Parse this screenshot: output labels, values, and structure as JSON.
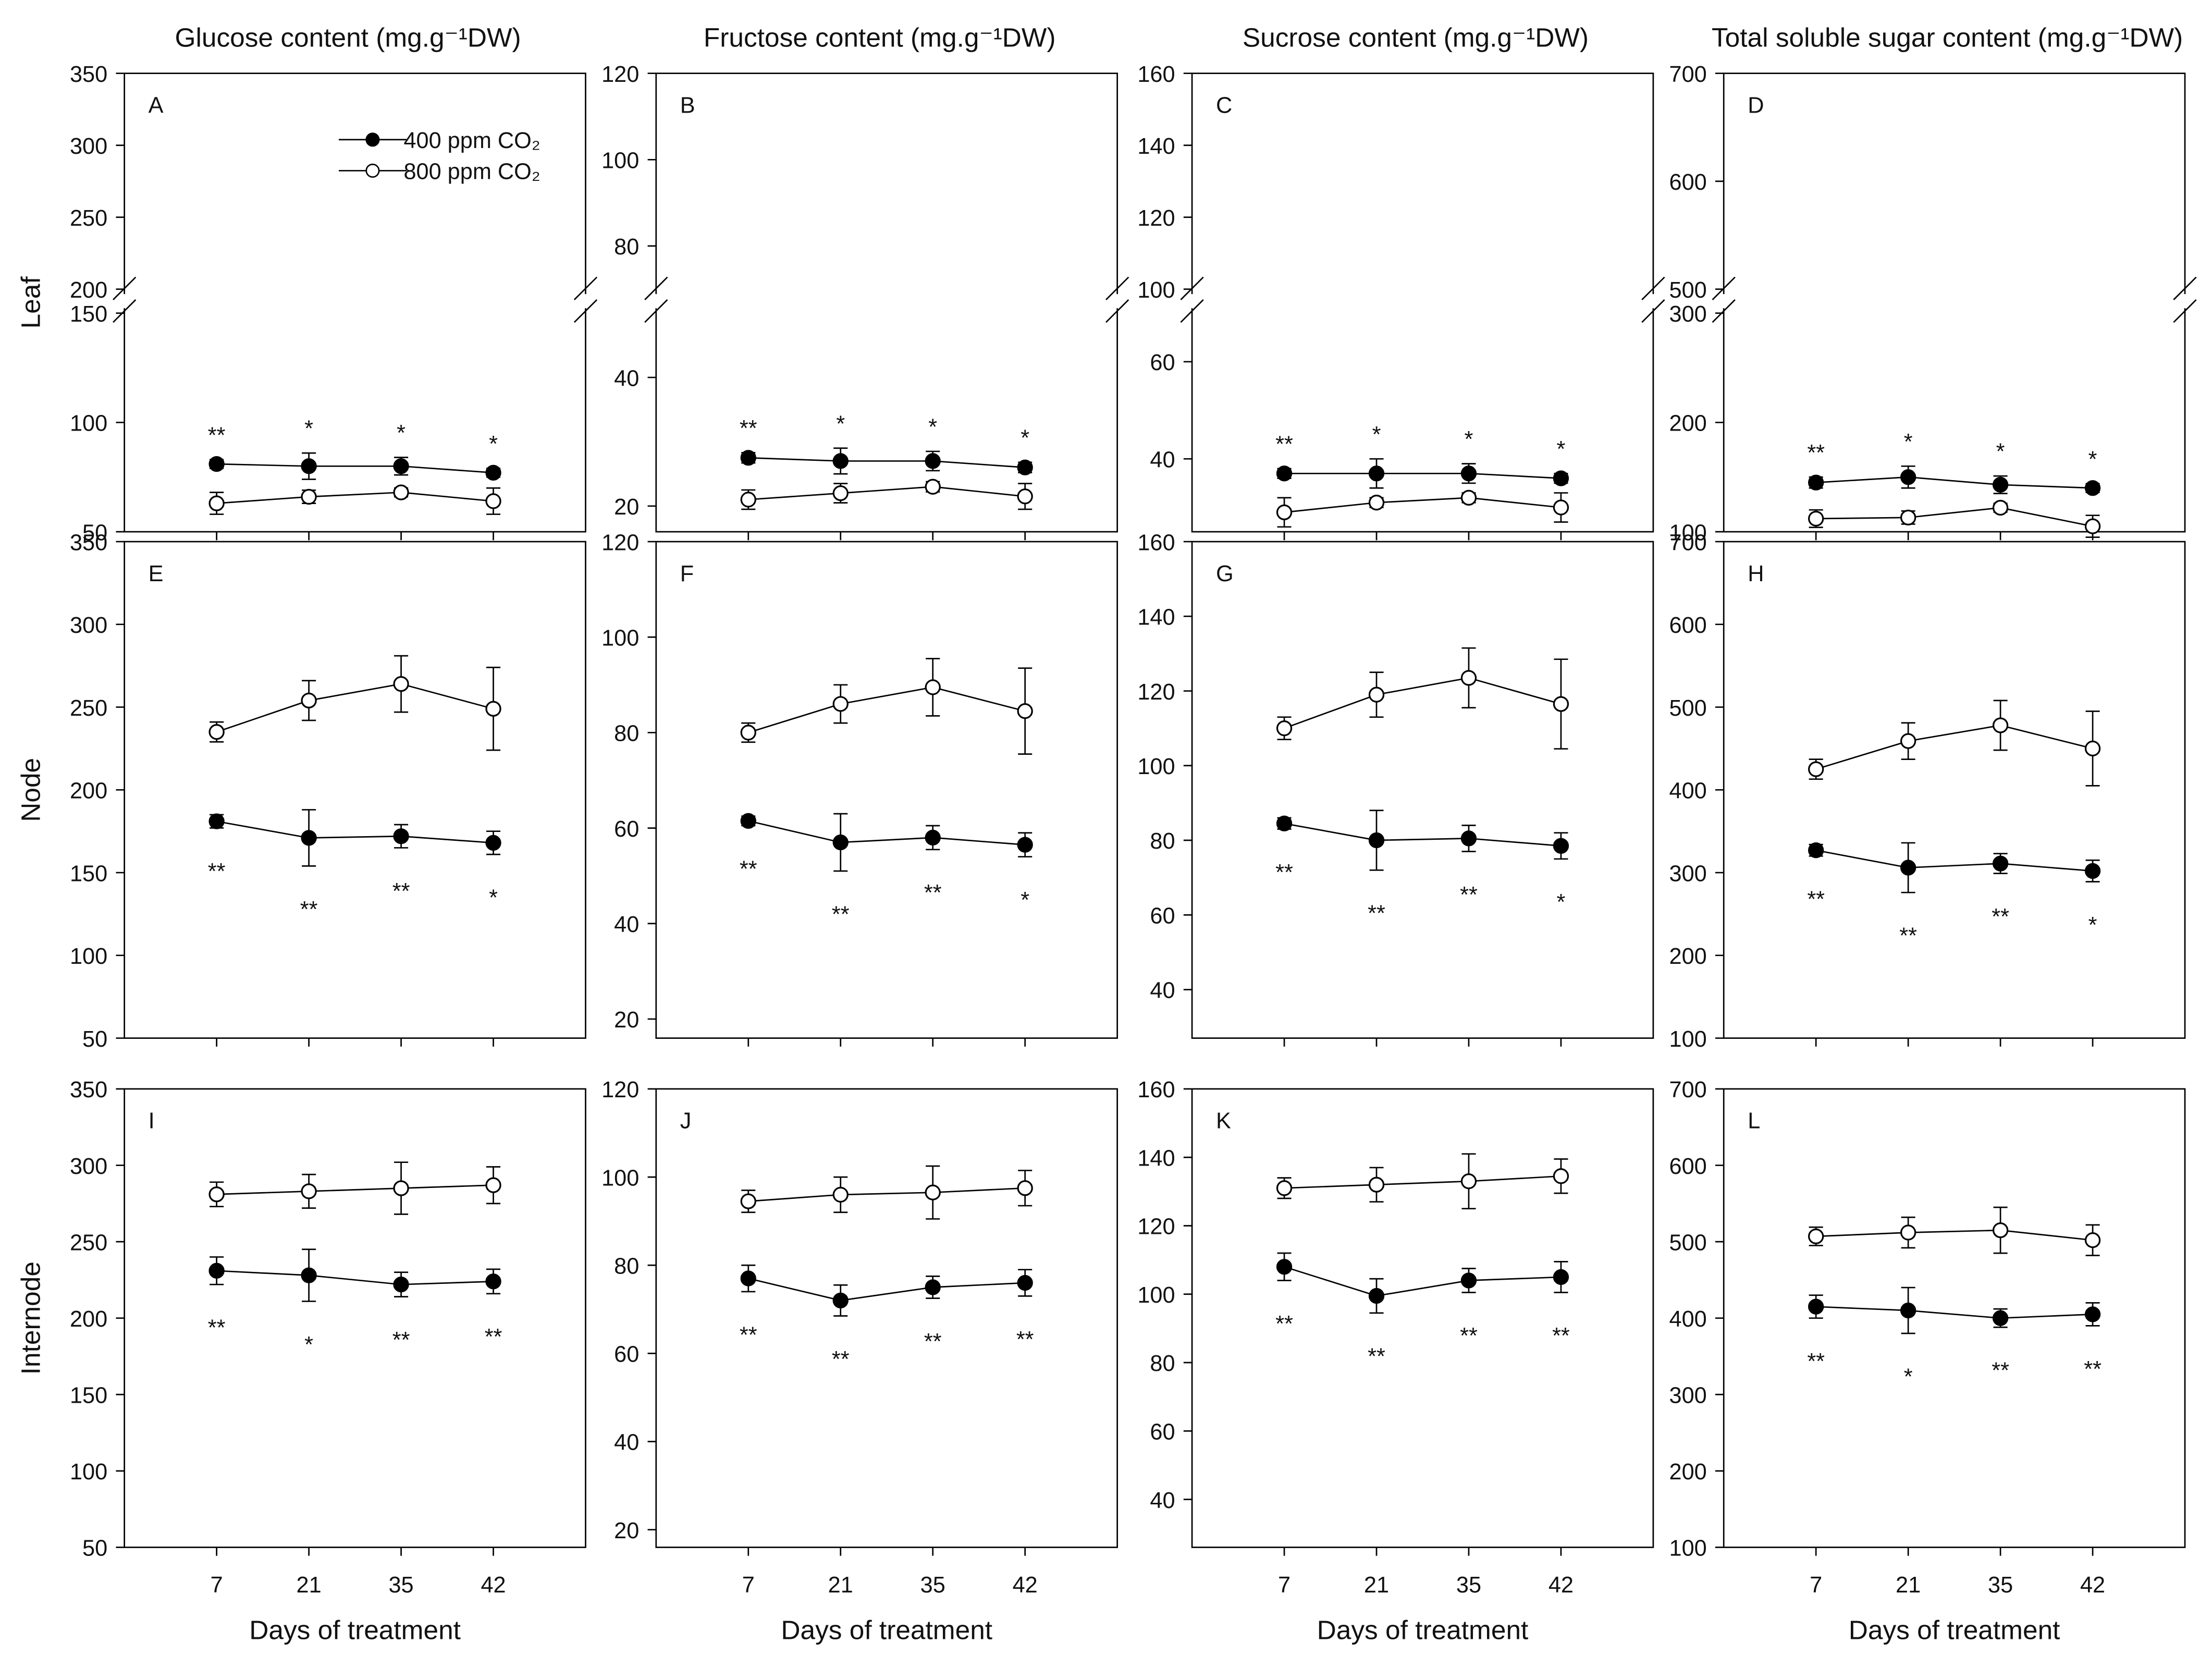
{
  "chart_data": [
    {
      "type": "line",
      "title": "Glucose content (mg.g⁻¹DW)",
      "ylabel": "Leaf",
      "label": "A",
      "legend": "top",
      "ylim": [
        50,
        350
      ],
      "ybreak": [
        150,
        200
      ],
      "yticks": [
        50,
        100,
        150,
        200,
        250,
        300,
        350
      ],
      "series": [
        {
          "name": "400 ppm CO₂",
          "color": "#000000",
          "marker_fill": "#000000",
          "values": [
            81,
            80,
            80,
            77
          ],
          "errors": [
            2,
            6,
            4,
            2
          ]
        },
        {
          "name": "800 ppm CO₂",
          "color": "#000000",
          "marker_fill": "#ffffff",
          "values": [
            63,
            66,
            68,
            64
          ],
          "errors": [
            5,
            3,
            2,
            6
          ]
        }
      ],
      "annotations": [
        "**",
        "*",
        "*",
        "*"
      ],
      "annotation_position": "above"
    },
    {
      "type": "line",
      "title": "Fructose content (mg.g⁻¹DW)",
      "label": "B",
      "ylim": [
        16,
        120
      ],
      "ybreak": [
        50,
        70
      ],
      "yticks": [
        20,
        40,
        80,
        100,
        120
      ],
      "series": [
        {
          "color": "#000000",
          "marker_fill": "#000000",
          "values": [
            27.5,
            27,
            27,
            26
          ],
          "errors": [
            0.8,
            2,
            1.5,
            0.8
          ]
        },
        {
          "color": "#000000",
          "marker_fill": "#ffffff",
          "values": [
            21,
            22,
            23,
            21.5
          ],
          "errors": [
            1.5,
            1.5,
            0.8,
            2
          ]
        }
      ],
      "annotations": [
        "**",
        "*",
        "*",
        "*"
      ],
      "annotation_position": "above"
    },
    {
      "type": "line",
      "title": "Sucrose content (mg.g⁻¹DW)",
      "label": "C",
      "ylim": [
        25,
        160
      ],
      "ybreak": [
        70,
        100
      ],
      "yticks": [
        40,
        60,
        100,
        120,
        140,
        160
      ],
      "series": [
        {
          "color": "#000000",
          "marker_fill": "#000000",
          "values": [
            37,
            37,
            37,
            36
          ],
          "errors": [
            1,
            3,
            2,
            1
          ]
        },
        {
          "color": "#000000",
          "marker_fill": "#ffffff",
          "values": [
            29,
            31,
            32,
            30
          ],
          "errors": [
            3,
            1,
            1,
            3
          ]
        }
      ],
      "annotations": [
        "**",
        "*",
        "*",
        "*"
      ],
      "annotation_position": "above"
    },
    {
      "type": "line",
      "title": "Total soluble sugar content (mg.g⁻¹DW)",
      "label": "D",
      "ylim": [
        100,
        700
      ],
      "ybreak": [
        300,
        500
      ],
      "yticks": [
        100,
        200,
        300,
        500,
        600,
        700
      ],
      "series": [
        {
          "color": "#000000",
          "marker_fill": "#000000",
          "values": [
            145,
            150,
            143,
            140
          ],
          "errors": [
            5,
            10,
            8,
            4
          ]
        },
        {
          "color": "#000000",
          "marker_fill": "#ffffff",
          "values": [
            112,
            113,
            122,
            105
          ],
          "errors": [
            8,
            6,
            4,
            10
          ]
        }
      ],
      "annotations": [
        "**",
        "*",
        "*",
        "*"
      ],
      "annotation_position": "above"
    },
    {
      "type": "line",
      "ylabel": "Node",
      "label": "E",
      "ylim": [
        50,
        350
      ],
      "yticks": [
        50,
        100,
        150,
        200,
        250,
        300,
        350
      ],
      "series": [
        {
          "color": "#000000",
          "marker_fill": "#000000",
          "values": [
            181,
            171,
            172,
            168
          ],
          "errors": [
            4,
            17,
            7,
            7
          ]
        },
        {
          "color": "#000000",
          "marker_fill": "#ffffff",
          "values": [
            235,
            254,
            264,
            249
          ],
          "errors": [
            6,
            12,
            17,
            25
          ]
        }
      ],
      "annotations": [
        "**",
        "**",
        "**",
        "*"
      ],
      "annotation_position": "below"
    },
    {
      "type": "line",
      "label": "F",
      "ylim": [
        16,
        120
      ],
      "yticks": [
        20,
        40,
        60,
        80,
        100,
        120
      ],
      "series": [
        {
          "color": "#000000",
          "marker_fill": "#000000",
          "values": [
            61.5,
            57,
            58,
            56.5
          ],
          "errors": [
            1,
            6,
            2.5,
            2.5
          ]
        },
        {
          "color": "#000000",
          "marker_fill": "#ffffff",
          "values": [
            80,
            86,
            89.5,
            84.5
          ],
          "errors": [
            2,
            4,
            6,
            9
          ]
        }
      ],
      "annotations": [
        "**",
        "**",
        "**",
        "*"
      ],
      "annotation_position": "below"
    },
    {
      "type": "line",
      "label": "G",
      "ylim": [
        27,
        160
      ],
      "yticks": [
        40,
        60,
        80,
        100,
        120,
        140,
        160
      ],
      "series": [
        {
          "color": "#000000",
          "marker_fill": "#000000",
          "values": [
            84.5,
            80,
            80.5,
            78.5
          ],
          "errors": [
            1.5,
            8,
            3.5,
            3.5
          ]
        },
        {
          "color": "#000000",
          "marker_fill": "#ffffff",
          "values": [
            110,
            119,
            123.5,
            116.5
          ],
          "errors": [
            3,
            6,
            8,
            12
          ]
        }
      ],
      "annotations": [
        "**",
        "**",
        "**",
        "*"
      ],
      "annotation_position": "below"
    },
    {
      "type": "line",
      "label": "H",
      "ylim": [
        100,
        700
      ],
      "yticks": [
        100,
        200,
        300,
        400,
        500,
        600,
        700
      ],
      "series": [
        {
          "color": "#000000",
          "marker_fill": "#000000",
          "values": [
            327,
            306,
            311,
            302
          ],
          "errors": [
            7,
            30,
            12,
            13
          ]
        },
        {
          "color": "#000000",
          "marker_fill": "#ffffff",
          "values": [
            425,
            459,
            478,
            450
          ],
          "errors": [
            12,
            22,
            30,
            45
          ]
        }
      ],
      "annotations": [
        "**",
        "**",
        "**",
        "*"
      ],
      "annotation_position": "below"
    },
    {
      "type": "line",
      "ylabel": "Internode",
      "label": "I",
      "xlabel": "Days of treatment",
      "categories": [
        "7",
        "21",
        "35",
        "42"
      ],
      "ylim": [
        50,
        350
      ],
      "yticks": [
        50,
        100,
        150,
        200,
        250,
        300,
        350
      ],
      "series": [
        {
          "color": "#000000",
          "marker_fill": "#000000",
          "values": [
            231,
            228,
            222,
            224
          ],
          "errors": [
            9,
            17,
            8,
            8
          ]
        },
        {
          "color": "#000000",
          "marker_fill": "#ffffff",
          "values": [
            281,
            283,
            285,
            287
          ],
          "errors": [
            8,
            11,
            17,
            12
          ]
        }
      ],
      "annotations": [
        "**",
        "*",
        "**",
        "**"
      ],
      "annotation_position": "below"
    },
    {
      "type": "line",
      "label": "J",
      "xlabel": "Days of treatment",
      "categories": [
        "7",
        "21",
        "35",
        "42"
      ],
      "ylim": [
        16,
        120
      ],
      "yticks": [
        20,
        40,
        60,
        80,
        100,
        120
      ],
      "series": [
        {
          "color": "#000000",
          "marker_fill": "#000000",
          "values": [
            77,
            72,
            75,
            76
          ],
          "errors": [
            3,
            3.5,
            2.5,
            3
          ]
        },
        {
          "color": "#000000",
          "marker_fill": "#ffffff",
          "values": [
            94.5,
            96,
            96.5,
            97.5
          ],
          "errors": [
            2.5,
            4,
            6,
            4
          ]
        }
      ],
      "annotations": [
        "**",
        "**",
        "**",
        "**"
      ],
      "annotation_position": "below"
    },
    {
      "type": "line",
      "label": "K",
      "xlabel": "Days of treatment",
      "categories": [
        "7",
        "21",
        "35",
        "42"
      ],
      "ylim": [
        26,
        160
      ],
      "yticks": [
        40,
        60,
        80,
        100,
        120,
        140,
        160
      ],
      "series": [
        {
          "color": "#000000",
          "marker_fill": "#000000",
          "values": [
            108,
            99.5,
            104,
            105
          ],
          "errors": [
            4,
            5,
            3.5,
            4.5
          ]
        },
        {
          "color": "#000000",
          "marker_fill": "#ffffff",
          "values": [
            131,
            132,
            133,
            134.5
          ],
          "errors": [
            3,
            5,
            8,
            5
          ]
        }
      ],
      "annotations": [
        "**",
        "**",
        "**",
        "**"
      ],
      "annotation_position": "below"
    },
    {
      "type": "line",
      "label": "L",
      "xlabel": "Days of treatment",
      "categories": [
        "7",
        "21",
        "35",
        "42"
      ],
      "ylim": [
        100,
        700
      ],
      "yticks": [
        100,
        200,
        300,
        400,
        500,
        600,
        700
      ],
      "series": [
        {
          "color": "#000000",
          "marker_fill": "#000000",
          "values": [
            415,
            410,
            400,
            405
          ],
          "errors": [
            15,
            30,
            12,
            15
          ]
        },
        {
          "color": "#000000",
          "marker_fill": "#ffffff",
          "values": [
            507,
            512,
            515,
            502
          ],
          "errors": [
            12,
            20,
            30,
            20
          ]
        }
      ],
      "annotations": [
        "**",
        "*",
        "**",
        "**"
      ],
      "annotation_position": "below"
    }
  ]
}
